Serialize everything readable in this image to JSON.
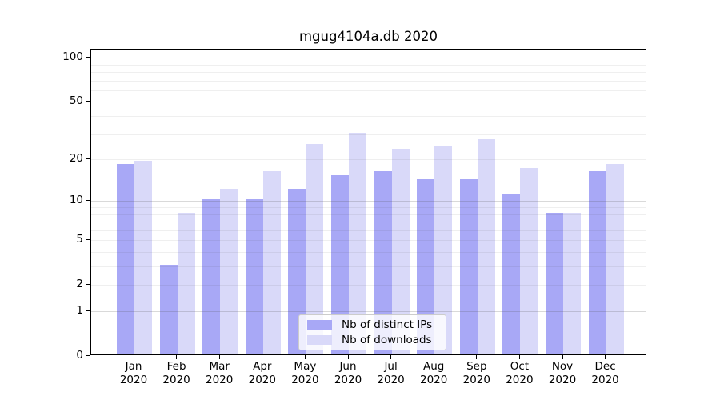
{
  "figure": {
    "background": "#ffffff"
  },
  "chart_data": {
    "type": "bar",
    "title": "mgug4104a.db 2020",
    "categories": [
      "Jan",
      "Feb",
      "Mar",
      "Apr",
      "May",
      "Jun",
      "Jul",
      "Aug",
      "Sep",
      "Oct",
      "Nov",
      "Dec"
    ],
    "year_label": "2020",
    "series": [
      {
        "name": "Nb of distinct IPs",
        "color": "#a8a8f6",
        "values": [
          18,
          3,
          10,
          10,
          12,
          15,
          16,
          14,
          14,
          11,
          8,
          16
        ]
      },
      {
        "name": "Nb of downloads",
        "color": "#d9d9f9",
        "values": [
          19,
          8,
          12,
          16,
          25,
          30,
          23,
          24,
          27,
          17,
          8,
          18
        ]
      }
    ],
    "xlabel": "",
    "ylabel": "",
    "yscale": "log10(1+value)",
    "ylim": [
      0,
      108
    ],
    "yticks": [
      0,
      1,
      2,
      5,
      10,
      20,
      50,
      100
    ],
    "major_gridlines": [
      1,
      10,
      100
    ],
    "minor_gridlines": [
      2,
      3,
      4,
      5,
      6,
      7,
      8,
      9,
      20,
      30,
      40,
      50,
      60,
      70,
      80,
      90
    ],
    "grid": "on",
    "legend_position": "lower-center"
  }
}
